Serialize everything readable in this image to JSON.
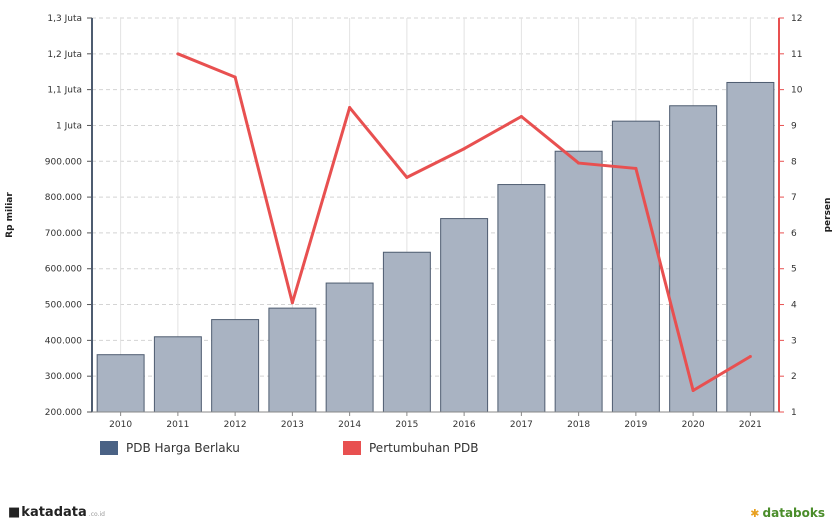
{
  "chart_data": {
    "type": "bar+line",
    "categories": [
      "2010",
      "2011",
      "2012",
      "2013",
      "2014",
      "2015",
      "2016",
      "2017",
      "2018",
      "2019",
      "2020",
      "2021"
    ],
    "series": [
      {
        "name": "PDB Harga Berlaku",
        "type": "bar",
        "axis": "left",
        "color": "#4a6285",
        "values": [
          360000,
          410000,
          458000,
          490000,
          560000,
          646000,
          740000,
          835000,
          928000,
          1012000,
          1055000,
          1120000
        ]
      },
      {
        "name": "Pertumbuhan PDB",
        "type": "line",
        "axis": "right",
        "color": "#e85050",
        "values": [
          null,
          11.0,
          10.35,
          4.05,
          9.5,
          7.55,
          8.35,
          9.25,
          7.95,
          7.8,
          1.6,
          2.55
        ]
      }
    ],
    "ylabel_left": "Rp miliar",
    "ylabel_right": "persen",
    "ylim_left": [
      200000,
      1300000
    ],
    "ylim_right": [
      1,
      12
    ],
    "left_tick_labels": [
      "200.000",
      "300.000",
      "400.000",
      "500.000",
      "600.000",
      "700.000",
      "800.000",
      "900.000",
      "1 Juta",
      "1,1 Juta",
      "1,2 Juta",
      "1,3 Juta"
    ],
    "right_tick_labels": [
      "1",
      "2",
      "3",
      "4",
      "5",
      "6",
      "7",
      "8",
      "9",
      "10",
      "11",
      "12"
    ],
    "grid": true,
    "legend": "bottom-left"
  },
  "branding": {
    "left_logo": "katadata",
    "left_logo_sub": ".co.id",
    "right_logo": "databoks"
  }
}
